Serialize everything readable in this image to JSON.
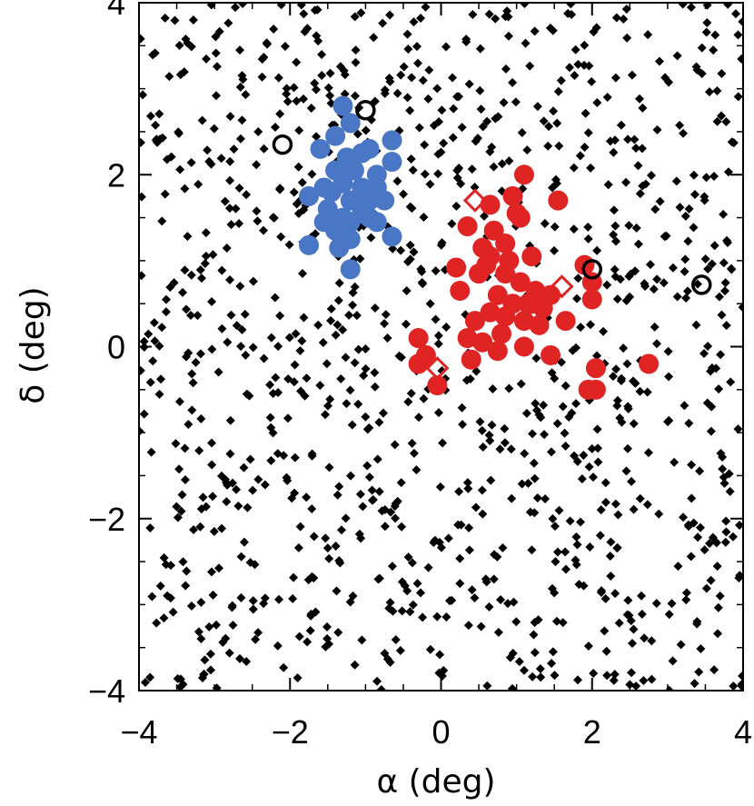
{
  "chart_data": {
    "type": "scatter",
    "title": "",
    "xlabel": "α (deg)",
    "ylabel": "δ (deg)",
    "xlim": [
      -4,
      4
    ],
    "ylim": [
      -4,
      4
    ],
    "xticks": [
      -4,
      -2,
      0,
      2,
      4
    ],
    "yticks": [
      -4,
      -2,
      0,
      2,
      4
    ],
    "xtick_labels": [
      "−4",
      "−2",
      "0",
      "2",
      "4"
    ],
    "ytick_labels": [
      "−4",
      "−2",
      "0",
      "2",
      "4"
    ],
    "grid": false,
    "legend": "none",
    "series": [
      {
        "marker": "filled-circle",
        "color": "#4a76c6",
        "points": [
          [
            -1.3,
            2.8
          ],
          [
            -1.2,
            2.6
          ],
          [
            -1.4,
            2.45
          ],
          [
            -1.6,
            2.3
          ],
          [
            -1.05,
            2.25
          ],
          [
            -0.95,
            2.3
          ],
          [
            -0.65,
            2.4
          ],
          [
            -0.65,
            2.15
          ],
          [
            -1.25,
            2.2
          ],
          [
            -1.4,
            2.05
          ],
          [
            -1.15,
            2.05
          ],
          [
            -0.85,
            2.0
          ],
          [
            -1.55,
            1.85
          ],
          [
            -1.3,
            1.9
          ],
          [
            -1.05,
            1.85
          ],
          [
            -1.75,
            1.75
          ],
          [
            -1.45,
            1.8
          ],
          [
            -0.85,
            1.85
          ],
          [
            -1.2,
            1.7
          ],
          [
            -0.95,
            1.7
          ],
          [
            -0.75,
            1.7
          ],
          [
            -1.5,
            1.6
          ],
          [
            -1.3,
            1.5
          ],
          [
            -1.05,
            1.55
          ],
          [
            -0.85,
            1.45
          ],
          [
            -1.55,
            1.45
          ],
          [
            -1.2,
            1.45
          ],
          [
            -0.95,
            1.5
          ],
          [
            -1.4,
            1.35
          ],
          [
            -1.2,
            1.25
          ],
          [
            -0.65,
            1.28
          ],
          [
            -1.75,
            1.18
          ],
          [
            -1.35,
            1.15
          ],
          [
            -1.2,
            0.9
          ]
        ]
      },
      {
        "marker": "filled-circle",
        "color": "#e02424",
        "points": [
          [
            1.1,
            2.0
          ],
          [
            0.65,
            1.65
          ],
          [
            1.0,
            1.55
          ],
          [
            0.95,
            1.75
          ],
          [
            1.55,
            1.7
          ],
          [
            1.05,
            1.5
          ],
          [
            0.35,
            1.4
          ],
          [
            0.7,
            1.35
          ],
          [
            0.55,
            1.15
          ],
          [
            0.85,
            1.2
          ],
          [
            0.9,
            1.0
          ],
          [
            1.2,
            1.05
          ],
          [
            0.65,
            1.05
          ],
          [
            0.6,
            0.95
          ],
          [
            0.85,
            0.85
          ],
          [
            0.2,
            0.92
          ],
          [
            0.5,
            0.85
          ],
          [
            1.05,
            0.75
          ],
          [
            1.25,
            0.65
          ],
          [
            1.45,
            0.6
          ],
          [
            0.75,
            0.6
          ],
          [
            0.95,
            0.5
          ],
          [
            0.25,
            0.65
          ],
          [
            1.2,
            0.5
          ],
          [
            1.35,
            0.45
          ],
          [
            0.65,
            0.4
          ],
          [
            0.85,
            0.35
          ],
          [
            0.45,
            0.3
          ],
          [
            1.1,
            0.3
          ],
          [
            1.65,
            0.3
          ],
          [
            1.3,
            0.25
          ],
          [
            0.8,
            0.15
          ],
          [
            0.35,
            0.1
          ],
          [
            0.55,
            0.05
          ],
          [
            1.1,
            0.0
          ],
          [
            -0.3,
            0.1
          ],
          [
            0.75,
            -0.05
          ],
          [
            1.45,
            -0.1
          ],
          [
            -0.2,
            -0.1
          ],
          [
            0.4,
            -0.15
          ],
          [
            1.9,
            0.95
          ],
          [
            2.0,
            0.75
          ],
          [
            2.0,
            0.55
          ],
          [
            2.75,
            -0.2
          ],
          [
            2.05,
            -0.25
          ],
          [
            2.05,
            -0.5
          ],
          [
            1.95,
            -0.5
          ],
          [
            -0.05,
            -0.45
          ],
          [
            -0.3,
            -0.2
          ],
          [
            1.15,
            0.5
          ]
        ]
      },
      {
        "marker": "open-diamond",
        "color": "#e02424",
        "points": [
          [
            0.45,
            1.7
          ],
          [
            1.6,
            0.7
          ],
          [
            -0.05,
            -0.25
          ]
        ]
      },
      {
        "marker": "open-circle",
        "color": "#000000",
        "points": [
          [
            -1.0,
            2.75
          ],
          [
            -2.1,
            2.35
          ],
          [
            2.0,
            0.9
          ],
          [
            3.45,
            0.72
          ]
        ]
      },
      {
        "marker": "filled-diamond",
        "color": "#000000",
        "count": 1100,
        "note_seed": 20231
      }
    ]
  }
}
